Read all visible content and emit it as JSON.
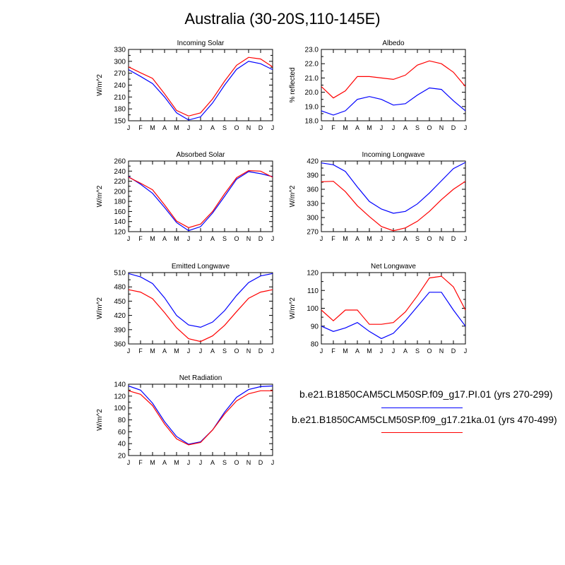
{
  "title": "Australia (30-20S,110-145E)",
  "colors": {
    "pi": "#0000ff",
    "ka": "#ff0000"
  },
  "legend": [
    {
      "label": "b.e21.B1850CAM5CLM50SP.f09_g17.PI.01 (yrs 270-299)",
      "color": "#0000ff"
    },
    {
      "label": "b.e21.B1850CAM5CLM50SP.f09_g17.21ka.01 (yrs 470-499)",
      "color": "#ff0000"
    }
  ],
  "chart_data": [
    {
      "type": "line",
      "title": "Incoming Solar",
      "ylabel": "W/m^2",
      "x": [
        "J",
        "F",
        "M",
        "A",
        "M",
        "J",
        "J",
        "A",
        "S",
        "O",
        "N",
        "D",
        "J"
      ],
      "ylim": [
        150,
        330
      ],
      "yticks": [
        150,
        180,
        210,
        240,
        270,
        300,
        330
      ],
      "series": [
        {
          "values": [
            279,
            262,
            244,
            210,
            170,
            152,
            160,
            195,
            240,
            280,
            300,
            294,
            279
          ]
        },
        {
          "values": [
            286,
            271,
            257,
            218,
            176,
            162,
            170,
            205,
            250,
            290,
            310,
            306,
            286
          ]
        }
      ]
    },
    {
      "type": "line",
      "title": "Albedo",
      "ylabel": "% reflected",
      "x": [
        "J",
        "F",
        "M",
        "A",
        "M",
        "J",
        "J",
        "A",
        "S",
        "O",
        "N",
        "D",
        "J"
      ],
      "ylim": [
        18.0,
        23.0
      ],
      "yticks": [
        "18.0",
        "19.0",
        "20.0",
        "21.0",
        "22.0",
        "23.0"
      ],
      "series": [
        {
          "values": [
            18.7,
            18.4,
            18.7,
            19.5,
            19.7,
            19.5,
            19.1,
            19.2,
            19.8,
            20.3,
            20.2,
            19.4,
            18.7
          ]
        },
        {
          "values": [
            20.4,
            19.6,
            20.1,
            21.1,
            21.1,
            21.0,
            20.9,
            21.2,
            21.9,
            22.2,
            22.0,
            21.4,
            20.4
          ]
        }
      ]
    },
    {
      "type": "line",
      "title": "Absorbed Solar",
      "ylabel": "W/m^2",
      "x": [
        "J",
        "F",
        "M",
        "A",
        "M",
        "J",
        "J",
        "A",
        "S",
        "O",
        "N",
        "D",
        "J"
      ],
      "ylim": [
        120,
        260
      ],
      "yticks": [
        120,
        140,
        160,
        180,
        200,
        220,
        240,
        260
      ],
      "series": [
        {
          "values": [
            229,
            214,
            196,
            168,
            138,
            122,
            130,
            157,
            190,
            224,
            239,
            235,
            229
          ]
        },
        {
          "values": [
            228,
            216,
            203,
            173,
            141,
            128,
            135,
            160,
            195,
            227,
            241,
            240,
            228
          ]
        }
      ]
    },
    {
      "type": "line",
      "title": "Incoming Longwave",
      "ylabel": "W/m^2",
      "x": [
        "J",
        "F",
        "M",
        "A",
        "M",
        "J",
        "J",
        "A",
        "S",
        "O",
        "N",
        "D",
        "J"
      ],
      "ylim": [
        270,
        420
      ],
      "yticks": [
        270,
        300,
        330,
        360,
        390,
        420
      ],
      "series": [
        {
          "values": [
            416,
            412,
            398,
            365,
            334,
            318,
            309,
            313,
            329,
            352,
            378,
            404,
            417
          ]
        },
        {
          "values": [
            376,
            377,
            355,
            325,
            302,
            281,
            272,
            278,
            292,
            313,
            338,
            360,
            377
          ]
        }
      ]
    },
    {
      "type": "line",
      "title": "Emitted Longwave",
      "ylabel": "W/m^2",
      "x": [
        "J",
        "F",
        "M",
        "A",
        "M",
        "J",
        "J",
        "A",
        "S",
        "O",
        "N",
        "D",
        "J"
      ],
      "ylim": [
        360,
        510
      ],
      "yticks": [
        360,
        390,
        420,
        450,
        480,
        510
      ],
      "series": [
        {
          "values": [
            508,
            501,
            487,
            457,
            420,
            400,
            395,
            406,
            430,
            462,
            489,
            503,
            508
          ]
        },
        {
          "values": [
            474,
            469,
            455,
            426,
            394,
            371,
            365,
            377,
            399,
            428,
            456,
            469,
            474
          ]
        }
      ]
    },
    {
      "type": "line",
      "title": "Net Longwave",
      "ylabel": "W/m^2",
      "x": [
        "J",
        "F",
        "M",
        "A",
        "M",
        "J",
        "J",
        "A",
        "S",
        "O",
        "N",
        "D",
        "J"
      ],
      "ylim": [
        80,
        120
      ],
      "yticks": [
        80,
        90,
        100,
        110,
        120
      ],
      "series": [
        {
          "values": [
            90,
            87,
            89,
            92,
            87,
            83,
            86,
            93,
            101,
            109,
            109,
            99,
            90
          ]
        },
        {
          "values": [
            99,
            93,
            99,
            99,
            91,
            91,
            92,
            98,
            107,
            117,
            118,
            112,
            99
          ]
        }
      ]
    },
    {
      "type": "line",
      "title": "Net Radiation",
      "ylabel": "W/m^2",
      "x": [
        "J",
        "F",
        "M",
        "A",
        "M",
        "J",
        "J",
        "A",
        "S",
        "O",
        "N",
        "D",
        "J"
      ],
      "ylim": [
        20,
        140
      ],
      "yticks": [
        20,
        40,
        60,
        80,
        100,
        120,
        140
      ],
      "series": [
        {
          "values": [
            137,
            130,
            108,
            77,
            52,
            39,
            43,
            63,
            93,
            118,
            131,
            136,
            137
          ]
        },
        {
          "values": [
            129,
            123,
            104,
            73,
            48,
            38,
            42,
            63,
            90,
            112,
            124,
            129,
            129
          ]
        }
      ]
    }
  ]
}
